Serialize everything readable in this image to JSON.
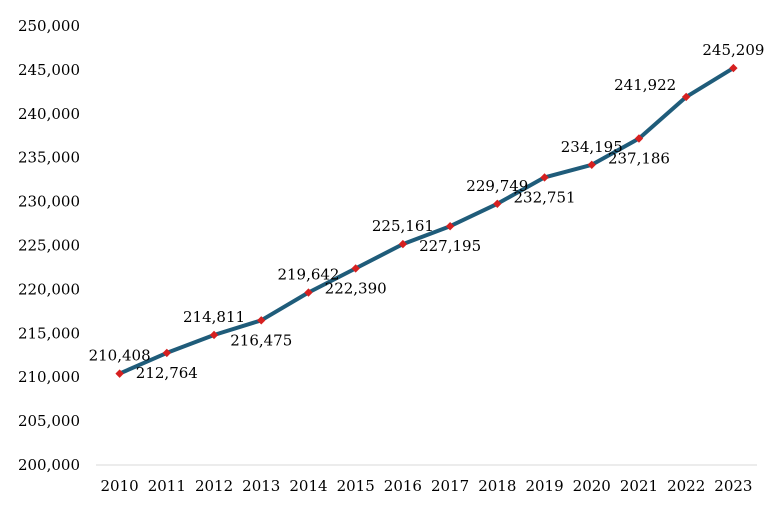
{
  "chart_data": {
    "type": "line",
    "title": "",
    "xlabel": "",
    "ylabel": "",
    "categories": [
      "2010",
      "2011",
      "2012",
      "2013",
      "2014",
      "2015",
      "2016",
      "2017",
      "2018",
      "2019",
      "2020",
      "2021",
      "2022",
      "2023"
    ],
    "values": [
      210408,
      212764,
      214811,
      216475,
      219642,
      222390,
      225161,
      227195,
      229749,
      232751,
      234195,
      237186,
      241922,
      245209
    ],
    "data_labels": [
      "210,408",
      "212,764",
      "214,811",
      "216,475",
      "219,642",
      "222,390",
      "225,161",
      "227,195",
      "229,749",
      "232,751",
      "234,195",
      "237,186",
      "241,922",
      "245,209"
    ],
    "label_positions": [
      "above",
      "below",
      "above",
      "below",
      "above",
      "below",
      "above",
      "below",
      "above",
      "below",
      "above",
      "below",
      "left",
      "above"
    ],
    "ylim": [
      200000,
      250000
    ],
    "yticks": [
      200000,
      205000,
      210000,
      215000,
      220000,
      225000,
      230000,
      235000,
      240000,
      245000,
      250000
    ],
    "ytick_labels": [
      "200,000",
      "205,000",
      "210,000",
      "215,000",
      "220,000",
      "225,000",
      "230,000",
      "235,000",
      "240,000",
      "245,000",
      "250,000"
    ],
    "grid": false,
    "legend": false,
    "colors": {
      "line": "#1f5c7a",
      "marker": "#d62020",
      "axis": "#d9d9d9"
    }
  }
}
